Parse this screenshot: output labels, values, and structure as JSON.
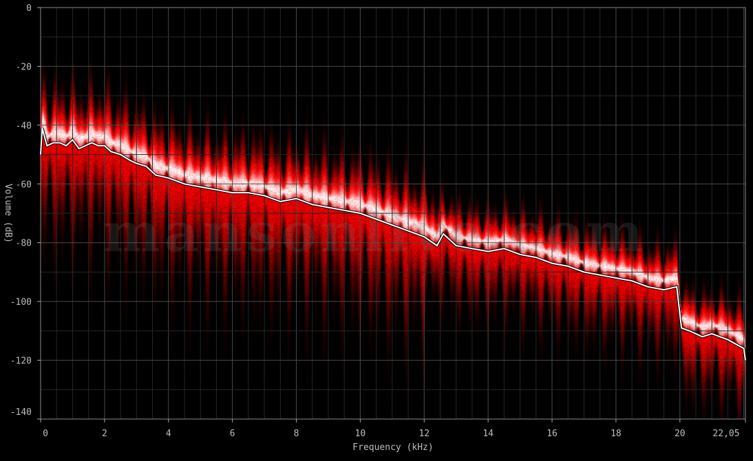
{
  "chart_data": {
    "type": "line",
    "title": "",
    "xlabel": "Frequency (kHz)",
    "ylabel": "Volume (dB)",
    "xlim": [
      0,
      22.05
    ],
    "ylim": [
      -140,
      0
    ],
    "x_ticks": [
      "0",
      "2",
      "4",
      "6",
      "8",
      "10",
      "12",
      "14",
      "16",
      "18",
      "20",
      "22,05"
    ],
    "x_tick_values": [
      0,
      2,
      4,
      6,
      8,
      10,
      12,
      14,
      16,
      18,
      20,
      22.05
    ],
    "y_ticks": [
      "0",
      "-20",
      "-40",
      "-60",
      "-80",
      "-100",
      "-120",
      "-140"
    ],
    "y_tick_values": [
      0,
      -20,
      -40,
      -60,
      -80,
      -100,
      -120,
      -140
    ],
    "grid": true,
    "background_style": "red spectrogram density heatmap",
    "colors": {
      "background": "#000000",
      "density": "#c00000",
      "line": "#ffffff",
      "grid": "#3a3a3a"
    },
    "series": [
      {
        "x": [
          0,
          0.05,
          0.1,
          0.2,
          0.4,
          0.6,
          0.8,
          1.0,
          1.2,
          1.4,
          1.6,
          1.8,
          2.0,
          2.2,
          2.5,
          2.8,
          3.0,
          3.3,
          3.6,
          4.0,
          4.5,
          5.0,
          5.5,
          6.0,
          6.5,
          7.0,
          7.5,
          8.0,
          8.5,
          9.0,
          9.5,
          10.0,
          10.5,
          11.0,
          11.5,
          12.0,
          12.4,
          12.6,
          13.0,
          13.5,
          14.0,
          14.5,
          15.0,
          15.5,
          16.0,
          16.5,
          17.0,
          17.5,
          18.0,
          18.5,
          19.0,
          19.5,
          19.9,
          20.05,
          20.3,
          20.7,
          21.0,
          21.5,
          22.0,
          22.05
        ],
        "y": [
          -50,
          -41,
          -43,
          -47,
          -46,
          -46,
          -47,
          -45,
          -48,
          -47,
          -46,
          -47,
          -47,
          -49,
          -50,
          -52,
          -53,
          -54,
          -57,
          -58,
          -60,
          -61,
          -62,
          -63,
          -63,
          -64,
          -66,
          -65,
          -67,
          -68,
          -69,
          -70,
          -72,
          -74,
          -76,
          -78,
          -81,
          -77,
          -81,
          -82,
          -83,
          -82,
          -84,
          -85,
          -87,
          -88,
          -90,
          -91,
          -92,
          -93,
          -95,
          -96,
          -95,
          -109,
          -110,
          -112,
          -111,
          -113,
          -116,
          -120
        ]
      }
    ]
  },
  "watermark": "mansonlive.com"
}
